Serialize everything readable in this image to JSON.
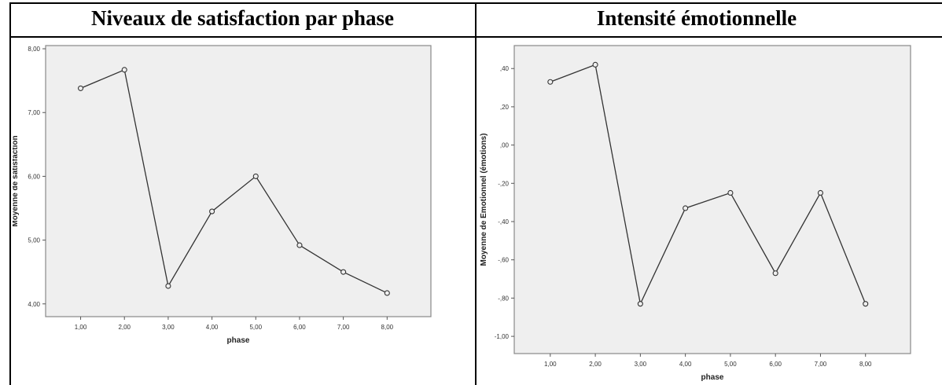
{
  "tables": {
    "left_header": "Niveaux de satisfaction par phase",
    "right_header": "Intensité émotionnelle"
  },
  "colors": {
    "plot_bg": "#efefef",
    "line": "#333333",
    "frame": "#888888"
  },
  "chart_data": [
    {
      "type": "line",
      "title": "",
      "xlabel": "phase",
      "ylabel": "Moyenne de satisfaction",
      "x_ticks": [
        "1,00",
        "2,00",
        "3,00",
        "4,00",
        "5,00",
        "6,00",
        "7,00",
        "8,00"
      ],
      "y_ticks": [
        "4,00",
        "5,00",
        "6,00",
        "7,00",
        "8,00"
      ],
      "y_tick_values": [
        4,
        5,
        6,
        7,
        8
      ],
      "xlim": [
        0.2,
        9.0
      ],
      "ylim": [
        3.8,
        8.05
      ],
      "x": [
        1,
        2,
        3,
        4,
        5,
        6,
        7,
        8
      ],
      "y": [
        7.38,
        7.67,
        4.28,
        5.45,
        6.0,
        4.92,
        4.5,
        4.17
      ],
      "grid": false,
      "marker": "circle"
    },
    {
      "type": "line",
      "title": "",
      "xlabel": "phase",
      "ylabel": "Moyenne de Emotionnel (émotions)",
      "x_ticks": [
        "1,00",
        "2,00",
        "3,00",
        "4,00",
        "5,00",
        "6,00",
        "7,00",
        "8,00"
      ],
      "y_ticks": [
        "-1,00",
        "-,80",
        "-,60",
        "-,40",
        "-,20",
        ",00",
        ",20",
        ",40"
      ],
      "y_tick_values": [
        -1.0,
        -0.8,
        -0.6,
        -0.4,
        -0.2,
        0.0,
        0.2,
        0.4
      ],
      "xlim": [
        0.2,
        9.0
      ],
      "ylim": [
        -1.09,
        0.52
      ],
      "x": [
        1,
        2,
        3,
        4,
        5,
        6,
        7,
        8
      ],
      "y": [
        0.33,
        0.42,
        -0.83,
        -0.33,
        -0.25,
        -0.67,
        -0.25,
        -0.83
      ],
      "grid": false,
      "marker": "circle"
    }
  ]
}
